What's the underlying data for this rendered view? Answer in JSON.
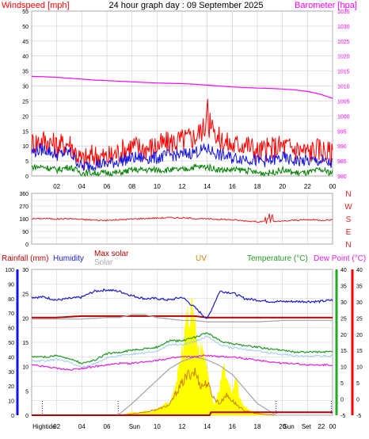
{
  "header": {
    "title": "24 hour graph day : 09 September 2025"
  },
  "colors": {
    "background": "#ffffff",
    "wind": "#ff0000",
    "wind_avg": "#1414e0",
    "wind_low": "#008000",
    "barometer": "#ff00ff",
    "direction": "#e02020",
    "humidity": "#1c1cc8",
    "max_solar": "#b80000",
    "solar_line": "#aaaaaa",
    "uv": "#d08000",
    "solar_fill": "#ffff00",
    "temperature": "#229922",
    "dew_point": "#e020e0",
    "apparent": "#99ccee",
    "rain": "#b80000",
    "axis_left": "#1414e0",
    "axis_right_green": "#22aa22",
    "axis_right_red": "#ff0000",
    "grid": "#cccccc"
  },
  "chart_data": [
    {
      "type": "line",
      "name": "wind_barometer",
      "title": "24 hour graph day : 09 September 2025",
      "ylabel_left": "Windspeed [mph]",
      "ylabel_right": "Barometer [hpa]",
      "ylim_left": [
        0,
        55
      ],
      "ylim_right": [
        980,
        1035
      ],
      "yticks_left": [
        0,
        5,
        10,
        15,
        20,
        25,
        30,
        35,
        40,
        45,
        50,
        55
      ],
      "yticks_right": [
        980,
        985,
        990,
        995,
        1000,
        1005,
        1010,
        1015,
        1020,
        1025,
        1030,
        1035
      ],
      "x_labels": [
        "02",
        "04",
        "06",
        "08",
        "10",
        "12",
        "14",
        "16",
        "18",
        "20",
        "22",
        "00"
      ],
      "x_range": [
        0,
        24
      ],
      "series": [
        {
          "name": "Barometer",
          "axis": "right",
          "x": [
            0,
            1,
            2,
            3,
            4,
            5,
            6,
            7,
            8,
            9,
            10,
            11,
            12,
            13,
            14,
            15,
            16,
            17,
            18,
            19,
            20,
            21,
            22,
            23,
            24
          ],
          "values": [
            1013.2,
            1013.1,
            1012.9,
            1012.6,
            1012.3,
            1012.0,
            1011.8,
            1011.6,
            1011.4,
            1011.2,
            1011.0,
            1010.9,
            1010.8,
            1010.6,
            1010.3,
            1010.0,
            1009.7,
            1009.5,
            1009.3,
            1009.2,
            1009.0,
            1008.7,
            1008.2,
            1007.3,
            1005.9
          ]
        },
        {
          "name": "Wind gust",
          "axis": "left",
          "x": [
            0,
            1,
            2,
            3,
            4,
            5,
            6,
            7,
            8,
            9,
            10,
            11,
            12,
            13,
            14,
            15,
            16,
            17,
            18,
            19,
            20,
            21,
            22,
            23,
            24
          ],
          "values": [
            11,
            12,
            10,
            11,
            5,
            7,
            6,
            8,
            10,
            9,
            10,
            11,
            12,
            13,
            17,
            12,
            10,
            11,
            8,
            9,
            10,
            9,
            8,
            9,
            7
          ]
        },
        {
          "name": "Wind speed",
          "axis": "left",
          "x": [
            0,
            1,
            2,
            3,
            4,
            5,
            6,
            7,
            8,
            9,
            10,
            11,
            12,
            13,
            14,
            15,
            16,
            17,
            18,
            19,
            20,
            21,
            22,
            23,
            24
          ],
          "values": [
            8,
            9,
            7,
            8,
            3,
            4,
            4,
            5,
            6,
            6,
            6,
            7,
            7,
            8,
            9,
            7,
            6,
            6,
            5,
            5,
            6,
            5,
            5,
            5,
            4
          ]
        },
        {
          "name": "Wind low",
          "axis": "left",
          "x": [
            0,
            1,
            2,
            3,
            4,
            5,
            6,
            7,
            8,
            9,
            10,
            11,
            12,
            13,
            14,
            15,
            16,
            17,
            18,
            19,
            20,
            21,
            22,
            23,
            24
          ],
          "values": [
            3,
            3,
            2,
            3,
            1,
            1,
            1,
            1,
            2,
            2,
            2,
            2,
            2,
            3,
            3,
            2,
            2,
            2,
            1,
            1,
            2,
            1,
            1,
            2,
            1
          ]
        }
      ]
    },
    {
      "type": "line",
      "name": "wind_direction",
      "ylim": [
        0,
        360
      ],
      "yticks": [
        0,
        45,
        90,
        135,
        180,
        225,
        270,
        315,
        360
      ],
      "yticklabels_left": [
        "0",
        "",
        "90",
        "",
        "180",
        "",
        "270",
        "",
        "360"
      ],
      "compass_labels": [
        "N",
        "W",
        "S",
        "E",
        "N"
      ],
      "x_range": [
        0,
        24
      ],
      "series": [
        {
          "name": "Wind direction",
          "x": [
            0,
            1,
            2,
            3,
            4,
            5,
            6,
            7,
            8,
            9,
            10,
            11,
            12,
            13,
            14,
            15,
            16,
            17,
            18,
            19,
            20,
            21,
            22,
            23,
            24
          ],
          "values": [
            180,
            182,
            178,
            181,
            175,
            170,
            168,
            172,
            178,
            182,
            185,
            188,
            186,
            182,
            178,
            176,
            172,
            165,
            160,
            158,
            162,
            170,
            172,
            170,
            172
          ]
        }
      ]
    },
    {
      "type": "area",
      "name": "rain_humidity_solar_temp",
      "legend": [
        "Rainfall (mm)",
        "Humidity",
        "Max solar",
        "Solar",
        "UV",
        "Temperature (°C)",
        "Dew Point (°C)"
      ],
      "ylim_humidity": [
        0,
        100
      ],
      "yticks_humidity": [
        0,
        10,
        20,
        30,
        40,
        50,
        60,
        70,
        80,
        90,
        100
      ],
      "ylim_rain": [
        0,
        30
      ],
      "yticks_rain": [
        0,
        5,
        10,
        15,
        20,
        25,
        30
      ],
      "ylim_temp": [
        -5,
        40
      ],
      "yticks_temp": [
        -5,
        0,
        5,
        10,
        15,
        20,
        25,
        30,
        35,
        40
      ],
      "x_labels": [
        "Hightide",
        "02",
        "04",
        "06",
        "Sun",
        "10",
        "12",
        "14",
        "16",
        "18",
        "20",
        "Sun",
        "Set",
        "22",
        "00"
      ],
      "x_range": [
        0,
        24
      ],
      "series": [
        {
          "name": "Humidity",
          "axis": "humidity",
          "x": [
            0,
            1,
            2,
            3,
            4,
            5,
            6,
            7,
            8,
            9,
            10,
            11,
            12,
            13,
            14,
            15,
            16,
            17,
            18,
            19,
            20,
            21,
            22,
            23,
            24
          ],
          "values": [
            81,
            81,
            79,
            80,
            81,
            85,
            86,
            85,
            82,
            80,
            80,
            79,
            81,
            74,
            66,
            85,
            84,
            80,
            79,
            78,
            78,
            78,
            78,
            78,
            79
          ]
        },
        {
          "name": "Temperature",
          "axis": "temp",
          "x": [
            0,
            1,
            2,
            3,
            4,
            5,
            6,
            7,
            8,
            9,
            10,
            11,
            12,
            13,
            14,
            15,
            16,
            17,
            18,
            19,
            20,
            21,
            22,
            23,
            24
          ],
          "values": [
            13,
            13,
            13.5,
            12.5,
            11,
            12,
            14,
            14.5,
            15,
            15.5,
            16,
            18,
            18,
            19,
            20.5,
            18,
            17,
            16.5,
            16,
            15.5,
            15,
            14.5,
            14.5,
            14.5,
            14.5
          ]
        },
        {
          "name": "Dew Point",
          "axis": "temp",
          "x": [
            0,
            1,
            2,
            3,
            4,
            5,
            6,
            7,
            8,
            9,
            10,
            11,
            12,
            13,
            14,
            15,
            16,
            17,
            18,
            19,
            20,
            21,
            22,
            23,
            24
          ],
          "values": [
            10.5,
            10,
            9.5,
            9,
            9.5,
            10,
            10.5,
            11,
            11,
            11.5,
            12,
            12.5,
            13,
            13,
            13.5,
            13,
            13,
            12.5,
            12,
            11.5,
            11,
            11,
            10.5,
            10.5,
            10.5
          ]
        },
        {
          "name": "Max solar",
          "axis": "humidity",
          "x": [
            0,
            2,
            4,
            5,
            6,
            7,
            8,
            9,
            10,
            11,
            12,
            13,
            14,
            15,
            16,
            18,
            20,
            22,
            24
          ],
          "values": [
            67,
            67,
            68,
            68,
            68,
            68,
            68,
            68,
            68,
            68,
            68,
            68,
            67,
            67,
            67,
            67,
            67,
            67,
            67
          ]
        },
        {
          "name": "Max solar gray",
          "axis": "humidity",
          "x": [
            0,
            2,
            4,
            6,
            7,
            8,
            9,
            10,
            11,
            12,
            13,
            14,
            15,
            16,
            18,
            20,
            22,
            24
          ],
          "values": [
            66,
            66,
            66,
            67,
            67,
            69,
            69,
            67,
            66,
            65,
            65,
            64,
            64,
            64,
            64,
            65,
            65,
            65
          ]
        },
        {
          "name": "Solar curve",
          "axis": "humidity",
          "x": [
            6.9,
            8,
            9,
            10,
            11,
            12,
            13,
            14,
            15,
            16,
            17,
            18,
            19.5
          ],
          "values": [
            0,
            8,
            16,
            24,
            32,
            37,
            40,
            38,
            34,
            28,
            18,
            8,
            0
          ]
        },
        {
          "name": "Solar measured",
          "axis": "humidity",
          "x": [
            6.9,
            7.5,
            8,
            8.5,
            9,
            9.5,
            10,
            10.5,
            11,
            11.3,
            11.6,
            12,
            12.3,
            12.6,
            13,
            13.3,
            13.6,
            14,
            14.3,
            14.6,
            15,
            15.3,
            15.6,
            16,
            16.3,
            16.6,
            17,
            17.5,
            18,
            18.5,
            19.5
          ],
          "values": [
            0,
            1,
            3,
            2,
            4,
            3,
            6,
            9,
            12,
            20,
            35,
            60,
            85,
            100,
            100,
            60,
            70,
            40,
            20,
            10,
            25,
            45,
            30,
            20,
            35,
            15,
            8,
            4,
            3,
            1,
            0
          ]
        },
        {
          "name": "UV",
          "axis": "humidity",
          "x": [
            6.9,
            8,
            9,
            10,
            11,
            11.5,
            12,
            12.5,
            13,
            13.5,
            14,
            14.5,
            15,
            15.5,
            16,
            16.5,
            17,
            18,
            19.5
          ],
          "values": [
            0,
            1,
            2,
            4,
            7,
            15,
            22,
            28,
            30,
            20,
            22,
            12,
            8,
            14,
            10,
            6,
            3,
            1,
            0
          ]
        },
        {
          "name": "Rainfall",
          "axis": "rain",
          "x": [
            0,
            14.2,
            14.3,
            24
          ],
          "values": [
            0,
            0,
            0.6,
            0.6
          ]
        }
      ]
    }
  ]
}
